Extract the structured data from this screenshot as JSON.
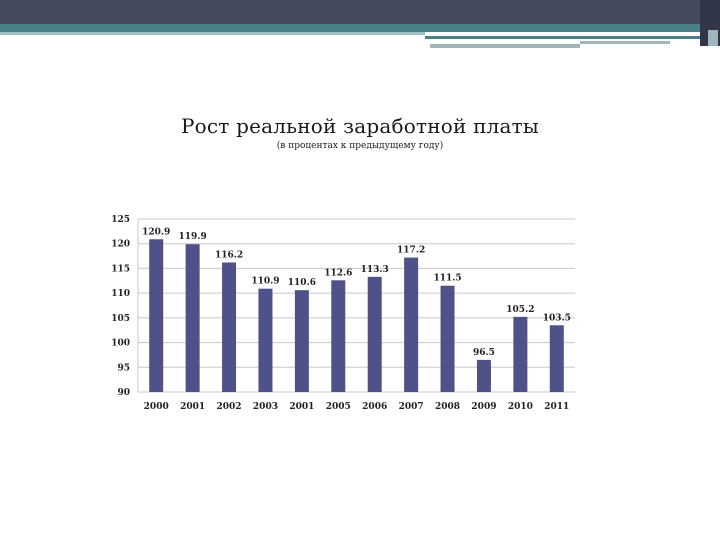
{
  "slide": {
    "title": "Рост реальной заработной платы",
    "subtitle": "(в процентах к предыдущему году)"
  },
  "colors": {
    "bar": "#4f5189",
    "grid": "#c8c8c8",
    "header": "#434a5e",
    "accent": "#4a7f86"
  },
  "chart_data": {
    "type": "bar",
    "categories": [
      "2000",
      "2001",
      "2002",
      "2003",
      "2001",
      "2005",
      "2006",
      "2007",
      "2008",
      "2009",
      "2010",
      "2011"
    ],
    "values": [
      120.9,
      119.9,
      116.2,
      110.9,
      110.6,
      112.6,
      113.3,
      117.2,
      111.5,
      96.5,
      105.2,
      103.5
    ],
    "data_labels": [
      "120.9",
      "119.9",
      "116.2",
      "110.9",
      "110.6",
      "112.6",
      "113.3",
      "117.2",
      "111.5",
      "96.5",
      "105.2",
      "103.5"
    ],
    "y_ticks": [
      "90",
      "95",
      "100",
      "105",
      "110",
      "115",
      "120",
      "125"
    ],
    "ylim": [
      90,
      125
    ],
    "grid": true,
    "legend": "none"
  }
}
